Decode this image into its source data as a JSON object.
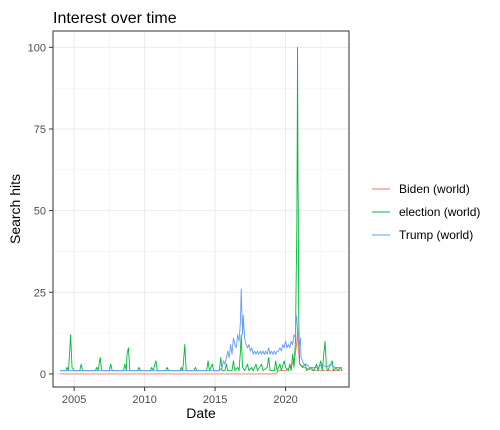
{
  "chart_data": {
    "type": "line",
    "title": "Interest over time",
    "xlabel": "Date",
    "ylabel": "Search hits",
    "xlim": [
      2003.5,
      2024.5
    ],
    "ylim": [
      -4,
      105
    ],
    "x_ticks": [
      2005,
      2010,
      2015,
      2020
    ],
    "y_ticks": [
      0,
      25,
      50,
      75,
      100
    ],
    "grid": true,
    "legend_position": "right",
    "series": [
      {
        "name": "Biden (world)",
        "color": "#F8766D",
        "points": [
          [
            2004.0,
            0
          ],
          [
            2019.3,
            0
          ],
          [
            2019.5,
            1
          ],
          [
            2020.0,
            1
          ],
          [
            2020.3,
            2
          ],
          [
            2020.5,
            3
          ],
          [
            2020.7,
            6
          ],
          [
            2020.8,
            10
          ],
          [
            2020.85,
            14
          ],
          [
            2020.9,
            8
          ],
          [
            2021.0,
            3
          ],
          [
            2021.3,
            2
          ],
          [
            2022.0,
            1
          ],
          [
            2024.0,
            1
          ]
        ]
      },
      {
        "name": "election (world)",
        "color": "#00BA38",
        "points": [
          [
            2004.0,
            1
          ],
          [
            2004.4,
            1
          ],
          [
            2004.5,
            2
          ],
          [
            2004.6,
            1
          ],
          [
            2004.7,
            8
          ],
          [
            2004.75,
            12
          ],
          [
            2004.85,
            2
          ],
          [
            2005.0,
            1
          ],
          [
            2005.4,
            1
          ],
          [
            2005.5,
            3
          ],
          [
            2005.6,
            1
          ],
          [
            2006.5,
            1
          ],
          [
            2006.6,
            2
          ],
          [
            2006.7,
            1
          ],
          [
            2006.85,
            5
          ],
          [
            2006.95,
            1
          ],
          [
            2007.5,
            1
          ],
          [
            2007.6,
            3
          ],
          [
            2007.7,
            1
          ],
          [
            2008.5,
            1
          ],
          [
            2008.6,
            3
          ],
          [
            2008.7,
            1
          ],
          [
            2008.75,
            6
          ],
          [
            2008.85,
            8
          ],
          [
            2008.95,
            1
          ],
          [
            2009.5,
            1
          ],
          [
            2009.6,
            2
          ],
          [
            2009.7,
            1
          ],
          [
            2010.4,
            1
          ],
          [
            2010.5,
            2
          ],
          [
            2010.6,
            1
          ],
          [
            2010.8,
            4
          ],
          [
            2010.9,
            1
          ],
          [
            2011.5,
            1
          ],
          [
            2011.6,
            2
          ],
          [
            2011.7,
            1
          ],
          [
            2012.5,
            1
          ],
          [
            2012.6,
            2
          ],
          [
            2012.7,
            1
          ],
          [
            2012.8,
            6
          ],
          [
            2012.85,
            9
          ],
          [
            2012.95,
            1
          ],
          [
            2013.5,
            1
          ],
          [
            2013.6,
            2
          ],
          [
            2013.7,
            1
          ],
          [
            2014.4,
            1
          ],
          [
            2014.5,
            4
          ],
          [
            2014.6,
            1
          ],
          [
            2014.8,
            3
          ],
          [
            2014.9,
            1
          ],
          [
            2015.3,
            1
          ],
          [
            2015.4,
            5
          ],
          [
            2015.5,
            1
          ],
          [
            2015.7,
            1
          ],
          [
            2015.8,
            3
          ],
          [
            2015.9,
            1
          ],
          [
            2016.2,
            1
          ],
          [
            2016.3,
            4
          ],
          [
            2016.4,
            1
          ],
          [
            2016.6,
            2
          ],
          [
            2016.7,
            1
          ],
          [
            2016.8,
            7
          ],
          [
            2016.85,
            12
          ],
          [
            2016.95,
            2
          ],
          [
            2017.1,
            1
          ],
          [
            2017.3,
            3
          ],
          [
            2017.4,
            1
          ],
          [
            2017.6,
            2
          ],
          [
            2017.7,
            1
          ],
          [
            2017.9,
            3
          ],
          [
            2018.0,
            1
          ],
          [
            2018.3,
            3
          ],
          [
            2018.4,
            1
          ],
          [
            2018.7,
            2
          ],
          [
            2018.8,
            5
          ],
          [
            2018.9,
            1
          ],
          [
            2019.2,
            1
          ],
          [
            2019.3,
            4
          ],
          [
            2019.4,
            1
          ],
          [
            2019.6,
            3
          ],
          [
            2019.7,
            1
          ],
          [
            2019.9,
            4
          ],
          [
            2020.0,
            2
          ],
          [
            2020.2,
            1
          ],
          [
            2020.3,
            3
          ],
          [
            2020.4,
            1
          ],
          [
            2020.5,
            6
          ],
          [
            2020.6,
            2
          ],
          [
            2020.7,
            10
          ],
          [
            2020.75,
            28
          ],
          [
            2020.8,
            45
          ],
          [
            2020.83,
            76
          ],
          [
            2020.85,
            100
          ],
          [
            2020.88,
            60
          ],
          [
            2020.9,
            52
          ],
          [
            2020.93,
            20
          ],
          [
            2020.96,
            9
          ],
          [
            2021.0,
            3
          ],
          [
            2021.2,
            2
          ],
          [
            2021.4,
            3
          ],
          [
            2021.5,
            1
          ],
          [
            2021.8,
            2
          ],
          [
            2022.0,
            1
          ],
          [
            2022.2,
            3
          ],
          [
            2022.3,
            1
          ],
          [
            2022.5,
            4
          ],
          [
            2022.6,
            1
          ],
          [
            2022.8,
            10
          ],
          [
            2022.9,
            2
          ],
          [
            2023.0,
            1
          ],
          [
            2023.3,
            4
          ],
          [
            2023.4,
            1
          ],
          [
            2023.6,
            2
          ],
          [
            2023.7,
            1
          ],
          [
            2023.9,
            2
          ],
          [
            2024.0,
            1
          ]
        ]
      },
      {
        "name": "Trump (world)",
        "color": "#619CFF",
        "points": [
          [
            2004.0,
            1
          ],
          [
            2015.0,
            1
          ],
          [
            2015.3,
            1
          ],
          [
            2015.5,
            2
          ],
          [
            2015.6,
            4
          ],
          [
            2015.7,
            3
          ],
          [
            2015.9,
            7
          ],
          [
            2016.0,
            5
          ],
          [
            2016.1,
            9
          ],
          [
            2016.2,
            6
          ],
          [
            2016.3,
            11
          ],
          [
            2016.4,
            9
          ],
          [
            2016.5,
            8
          ],
          [
            2016.6,
            12
          ],
          [
            2016.7,
            10
          ],
          [
            2016.8,
            16
          ],
          [
            2016.85,
            26
          ],
          [
            2016.9,
            19
          ],
          [
            2016.95,
            12
          ],
          [
            2017.0,
            18
          ],
          [
            2017.05,
            14
          ],
          [
            2017.1,
            11
          ],
          [
            2017.2,
            9
          ],
          [
            2017.3,
            8
          ],
          [
            2017.4,
            9
          ],
          [
            2017.5,
            7
          ],
          [
            2017.6,
            8
          ],
          [
            2017.7,
            6
          ],
          [
            2017.8,
            7
          ],
          [
            2017.9,
            6
          ],
          [
            2018.0,
            7
          ],
          [
            2018.1,
            6
          ],
          [
            2018.2,
            7
          ],
          [
            2018.3,
            6
          ],
          [
            2018.4,
            7
          ],
          [
            2018.5,
            6
          ],
          [
            2018.6,
            7
          ],
          [
            2018.7,
            6
          ],
          [
            2018.8,
            8
          ],
          [
            2018.9,
            6
          ],
          [
            2019.0,
            7
          ],
          [
            2019.1,
            6
          ],
          [
            2019.2,
            7
          ],
          [
            2019.3,
            6
          ],
          [
            2019.4,
            7
          ],
          [
            2019.5,
            7
          ],
          [
            2019.6,
            8
          ],
          [
            2019.7,
            7
          ],
          [
            2019.8,
            9
          ],
          [
            2019.9,
            8
          ],
          [
            2020.0,
            10
          ],
          [
            2020.1,
            8
          ],
          [
            2020.2,
            9
          ],
          [
            2020.3,
            8
          ],
          [
            2020.4,
            10
          ],
          [
            2020.5,
            9
          ],
          [
            2020.6,
            12
          ],
          [
            2020.7,
            11
          ],
          [
            2020.75,
            18
          ],
          [
            2020.8,
            17
          ],
          [
            2020.85,
            13
          ],
          [
            2020.9,
            12
          ],
          [
            2021.0,
            9
          ],
          [
            2021.05,
            11
          ],
          [
            2021.1,
            5
          ],
          [
            2021.2,
            4
          ],
          [
            2021.3,
            3
          ],
          [
            2021.5,
            3
          ],
          [
            2021.7,
            2
          ],
          [
            2022.0,
            2
          ],
          [
            2022.3,
            2
          ],
          [
            2022.6,
            3
          ],
          [
            2022.9,
            2
          ],
          [
            2023.2,
            3
          ],
          [
            2023.5,
            2
          ],
          [
            2023.8,
            2
          ],
          [
            2024.0,
            2
          ]
        ]
      }
    ]
  }
}
